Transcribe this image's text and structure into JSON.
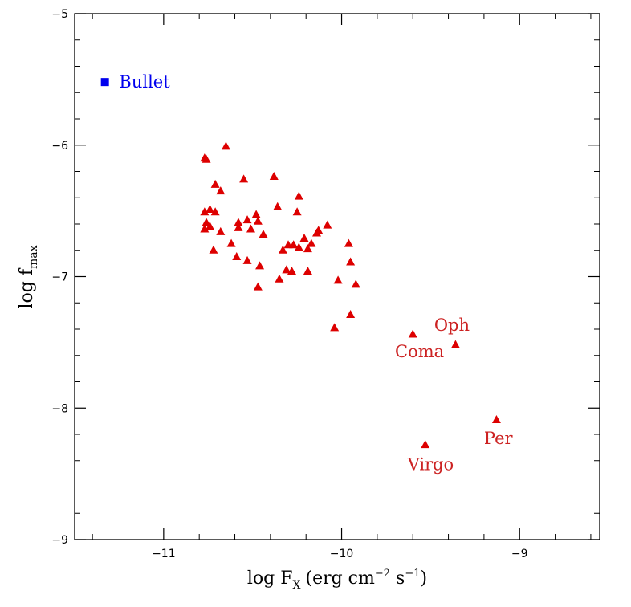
{
  "chart_data": {
    "type": "scatter",
    "title": "",
    "xlabel": "log F",
    "xlabel_sub": "X",
    "xlabel_units_prefix": "(erg cm",
    "xlabel_units_exp1": "−2",
    "xlabel_units_mid": " s",
    "xlabel_units_exp2": "−1",
    "xlabel_units_suffix": ")",
    "ylabel": "log f",
    "ylabel_sub": "max",
    "xlim": [
      -11.5,
      -8.55
    ],
    "ylim": [
      -9,
      -5
    ],
    "xticks_major": [
      -11,
      -10,
      -9
    ],
    "xtick_labels": [
      "−11",
      "−10",
      "−9"
    ],
    "yticks_major": [
      -9,
      -8,
      -7,
      -6,
      -5
    ],
    "ytick_labels": [
      "−9",
      "−8",
      "−7",
      "−6",
      "−5"
    ],
    "minor_step": 0.2,
    "grid": false,
    "colors": {
      "clusters": "#dd0000",
      "bullet": "#0000ee",
      "axes": "#000000"
    },
    "series": [
      {
        "marker": "triangle",
        "color": "#dd0000",
        "points": [
          [
            -10.77,
            -6.1
          ],
          [
            -10.76,
            -6.11
          ],
          [
            -10.65,
            -6.01
          ],
          [
            -10.71,
            -6.3
          ],
          [
            -10.68,
            -6.35
          ],
          [
            -10.77,
            -6.51
          ],
          [
            -10.74,
            -6.49
          ],
          [
            -10.71,
            -6.51
          ],
          [
            -10.76,
            -6.59
          ],
          [
            -10.77,
            -6.64
          ],
          [
            -10.74,
            -6.62
          ],
          [
            -10.68,
            -6.66
          ],
          [
            -10.62,
            -6.75
          ],
          [
            -10.72,
            -6.8
          ],
          [
            -10.59,
            -6.85
          ],
          [
            -10.58,
            -6.59
          ],
          [
            -10.58,
            -6.63
          ],
          [
            -10.55,
            -6.26
          ],
          [
            -10.53,
            -6.57
          ],
          [
            -10.51,
            -6.64
          ],
          [
            -10.53,
            -6.88
          ],
          [
            -10.48,
            -6.53
          ],
          [
            -10.47,
            -6.58
          ],
          [
            -10.44,
            -6.68
          ],
          [
            -10.46,
            -6.92
          ],
          [
            -10.47,
            -7.08
          ],
          [
            -10.38,
            -6.24
          ],
          [
            -10.36,
            -6.47
          ],
          [
            -10.35,
            -7.02
          ],
          [
            -10.33,
            -6.8
          ],
          [
            -10.3,
            -6.76
          ],
          [
            -10.31,
            -6.95
          ],
          [
            -10.28,
            -6.96
          ],
          [
            -10.27,
            -6.76
          ],
          [
            -10.24,
            -6.78
          ],
          [
            -10.25,
            -6.51
          ],
          [
            -10.24,
            -6.39
          ],
          [
            -10.21,
            -6.71
          ],
          [
            -10.19,
            -6.79
          ],
          [
            -10.19,
            -6.96
          ],
          [
            -10.17,
            -6.75
          ],
          [
            -10.14,
            -6.67
          ],
          [
            -10.13,
            -6.65
          ],
          [
            -10.08,
            -6.61
          ],
          [
            -10.04,
            -7.39
          ],
          [
            -10.02,
            -7.03
          ],
          [
            -9.96,
            -6.75
          ],
          [
            -9.95,
            -6.89
          ],
          [
            -9.92,
            -7.06
          ],
          [
            -9.95,
            -7.29
          ],
          [
            -9.6,
            -7.44
          ],
          [
            -9.36,
            -7.52
          ],
          [
            -9.53,
            -8.28
          ],
          [
            -9.13,
            -8.09
          ]
        ]
      },
      {
        "marker": "square",
        "color": "#0000ee",
        "points": [
          [
            -11.33,
            -5.52
          ]
        ]
      }
    ],
    "annotations": [
      {
        "text": "Bullet",
        "x": -11.25,
        "y": -5.52,
        "color": "#0000ee"
      },
      {
        "text": "Oph",
        "x": -9.48,
        "y": -7.37,
        "color": "#cc2222"
      },
      {
        "text": "Coma",
        "x": -9.7,
        "y": -7.57,
        "color": "#cc2222"
      },
      {
        "text": "Per",
        "x": -9.2,
        "y": -8.23,
        "color": "#cc2222"
      },
      {
        "text": "Virgo",
        "x": -9.63,
        "y": -8.43,
        "color": "#cc2222"
      }
    ]
  }
}
